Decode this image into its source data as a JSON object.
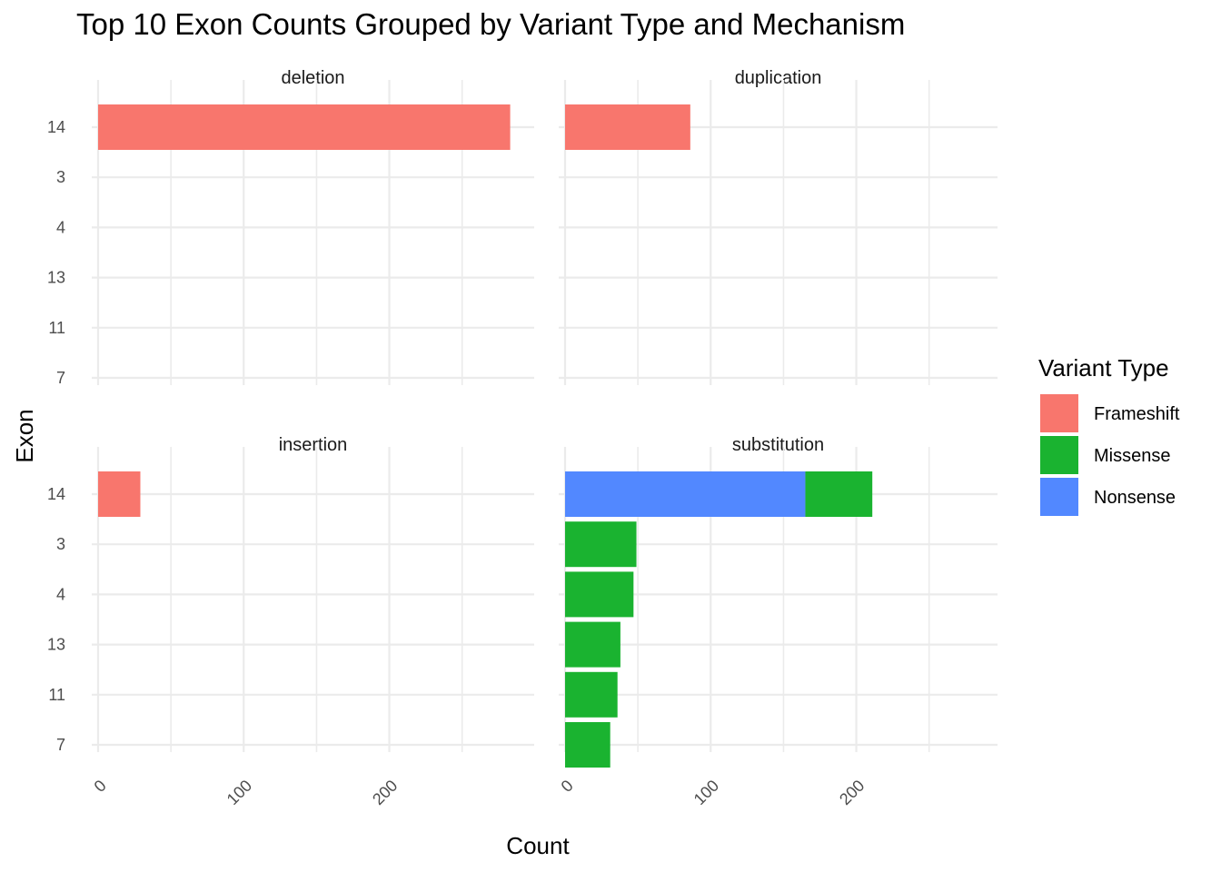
{
  "chart_data": {
    "type": "bar",
    "orientation": "horizontal",
    "stacked": true,
    "title": "Top 10 Exon Counts Grouped by Variant Type and Mechanism",
    "xlabel": "Count",
    "ylabel": "Exon",
    "categories": [
      "14",
      "3",
      "4",
      "13",
      "11",
      "7"
    ],
    "xlim": [
      0,
      275
    ],
    "xticks": [
      "0",
      "100",
      "200"
    ],
    "grid": true,
    "legend": {
      "title": "Variant Type",
      "position": "right",
      "entries": [
        {
          "name": "Frameshift",
          "color": "#F8766D"
        },
        {
          "name": "Missense",
          "color": "#1AB330"
        },
        {
          "name": "Nonsense",
          "color": "#5288FF"
        }
      ]
    },
    "panels": [
      {
        "name": "deletion",
        "series": [
          {
            "name": "Frameshift",
            "values": [
              283,
              0,
              0,
              0,
              0,
              0
            ]
          }
        ]
      },
      {
        "name": "duplication",
        "series": [
          {
            "name": "Frameshift",
            "values": [
              86,
              0,
              0,
              0,
              0,
              0
            ]
          }
        ]
      },
      {
        "name": "insertion",
        "series": [
          {
            "name": "Frameshift",
            "values": [
              29,
              0,
              0,
              0,
              0,
              0
            ]
          }
        ]
      },
      {
        "name": "substitution",
        "series": [
          {
            "name": "Nonsense",
            "values": [
              165,
              0,
              0,
              0,
              0,
              0
            ]
          },
          {
            "name": "Missense",
            "values": [
              46,
              49,
              47,
              38,
              36,
              31
            ]
          }
        ]
      }
    ]
  }
}
